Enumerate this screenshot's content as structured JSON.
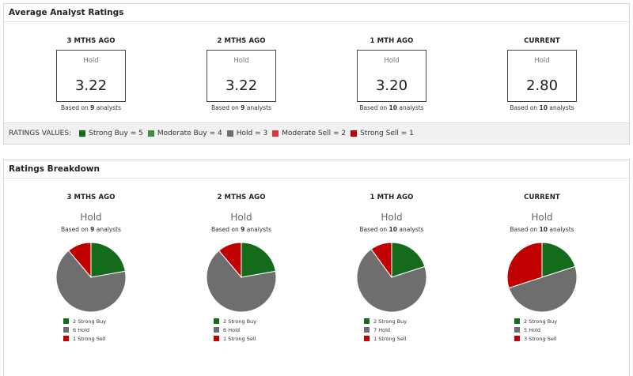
{
  "colors": {
    "strong_buy": "#136b1b",
    "moderate_buy": "#3e8e3e",
    "hold": "#6e6e6e",
    "moderate_sell": "#d9393f",
    "strong_sell": "#c00000"
  },
  "average": {
    "title": "Average Analyst Ratings",
    "columns": [
      {
        "period": "3 MTHS AGO",
        "rating": "Hold",
        "score": "3.22",
        "based_prefix": "Based on ",
        "analysts": "9",
        "based_suffix": " analysts"
      },
      {
        "period": "2 MTHS AGO",
        "rating": "Hold",
        "score": "3.22",
        "based_prefix": "Based on ",
        "analysts": "9",
        "based_suffix": " analysts"
      },
      {
        "period": "1 MTH AGO",
        "rating": "Hold",
        "score": "3.20",
        "based_prefix": "Based on ",
        "analysts": "10",
        "based_suffix": " analysts"
      },
      {
        "period": "CURRENT",
        "rating": "Hold",
        "score": "2.80",
        "based_prefix": "Based on ",
        "analysts": "10",
        "based_suffix": " analysts"
      }
    ],
    "ratings_values_label": "RATINGS VALUES:",
    "ratings_values": [
      {
        "label": "Strong Buy = 5",
        "color": "#136b1b"
      },
      {
        "label": "Moderate Buy = 4",
        "color": "#3e8e3e"
      },
      {
        "label": "Hold = 3",
        "color": "#6e6e6e"
      },
      {
        "label": "Moderate Sell = 2",
        "color": "#d9393f"
      },
      {
        "label": "Strong Sell = 1",
        "color": "#c00000"
      }
    ]
  },
  "breakdown": {
    "title": "Ratings Breakdown",
    "columns": [
      {
        "period": "3 MTHS AGO",
        "rating": "Hold",
        "based_prefix": "Based on ",
        "analysts": "9",
        "based_suffix": " analysts",
        "legend": [
          "2 Strong Buy",
          "6 Hold",
          "1 Strong Sell"
        ]
      },
      {
        "period": "2 MTHS AGO",
        "rating": "Hold",
        "based_prefix": "Based on ",
        "analysts": "9",
        "based_suffix": " analysts",
        "legend": [
          "2 Strong Buy",
          "6 Hold",
          "1 Strong Sell"
        ]
      },
      {
        "period": "1 MTH AGO",
        "rating": "Hold",
        "based_prefix": "Based on ",
        "analysts": "10",
        "based_suffix": " analysts",
        "legend": [
          "2 Strong Buy",
          "7 Hold",
          "1 Strong Sell"
        ]
      },
      {
        "period": "CURRENT",
        "rating": "Hold",
        "based_prefix": "Based on ",
        "analysts": "10",
        "based_suffix": " analysts",
        "legend": [
          "2 Strong Buy",
          "5 Hold",
          "3 Strong Sell"
        ]
      }
    ]
  },
  "chart_data": [
    {
      "type": "pie",
      "title": "3 MTHS AGO",
      "categories": [
        "Strong Buy",
        "Hold",
        "Strong Sell"
      ],
      "values": [
        2,
        6,
        1
      ],
      "colors": [
        "#136b1b",
        "#6e6e6e",
        "#c00000"
      ]
    },
    {
      "type": "pie",
      "title": "2 MTHS AGO",
      "categories": [
        "Strong Buy",
        "Hold",
        "Strong Sell"
      ],
      "values": [
        2,
        6,
        1
      ],
      "colors": [
        "#136b1b",
        "#6e6e6e",
        "#c00000"
      ]
    },
    {
      "type": "pie",
      "title": "1 MTH AGO",
      "categories": [
        "Strong Buy",
        "Hold",
        "Strong Sell"
      ],
      "values": [
        2,
        7,
        1
      ],
      "colors": [
        "#136b1b",
        "#6e6e6e",
        "#c00000"
      ]
    },
    {
      "type": "pie",
      "title": "CURRENT",
      "categories": [
        "Strong Buy",
        "Hold",
        "Strong Sell"
      ],
      "values": [
        2,
        5,
        3
      ],
      "colors": [
        "#136b1b",
        "#6e6e6e",
        "#c00000"
      ]
    }
  ]
}
